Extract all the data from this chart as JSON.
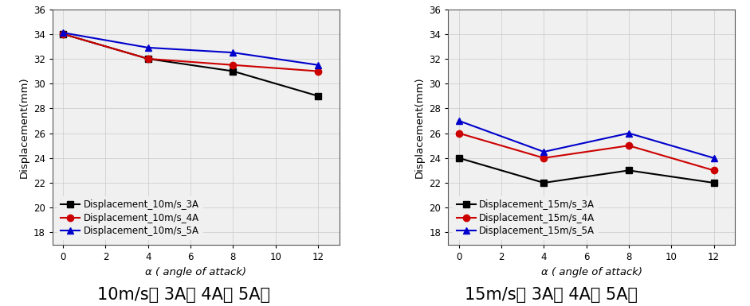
{
  "x": [
    0,
    4,
    8,
    12
  ],
  "plot1": {
    "series": [
      {
        "label": "Displacement_10m/s_3A",
        "color": "#000000",
        "marker": "s",
        "values": [
          34.0,
          32.0,
          31.0,
          29.0
        ]
      },
      {
        "label": "Displacement_10m/s_4A",
        "color": "#cc0000",
        "marker": "o",
        "values": [
          34.0,
          32.0,
          31.5,
          31.0
        ]
      },
      {
        "label": "Displacement_10m/s_5A",
        "color": "#0000cc",
        "marker": "^",
        "values": [
          34.1,
          32.9,
          32.5,
          31.5
        ]
      }
    ],
    "xlabel": "α ( angle of attack)",
    "ylabel": "Displacement(mm)",
    "xlim": [
      -0.5,
      13
    ],
    "ylim": [
      17,
      36
    ],
    "xticks": [
      0,
      2,
      4,
      6,
      8,
      10,
      12
    ],
    "yticks": [
      18,
      20,
      22,
      24,
      26,
      28,
      30,
      32,
      34,
      36
    ],
    "caption": "10m/s（ 3A， 4A， 5A）"
  },
  "plot2": {
    "series": [
      {
        "label": "Displacement_15m/s_3A",
        "color": "#000000",
        "marker": "s",
        "values": [
          24.0,
          22.0,
          23.0,
          22.0
        ]
      },
      {
        "label": "Displacement_15m/s_4A",
        "color": "#cc0000",
        "marker": "o",
        "values": [
          26.0,
          24.0,
          25.0,
          23.0
        ]
      },
      {
        "label": "Displacement_15m/s_5A",
        "color": "#0000cc",
        "marker": "^",
        "values": [
          27.0,
          24.5,
          26.0,
          24.0
        ]
      }
    ],
    "xlabel": "α ( angle of attack)",
    "ylabel": "Displacement(mm)",
    "xlim": [
      -0.5,
      13
    ],
    "ylim": [
      17,
      36
    ],
    "xticks": [
      0,
      2,
      4,
      6,
      8,
      10,
      12
    ],
    "yticks": [
      18,
      20,
      22,
      24,
      26,
      28,
      30,
      32,
      34,
      36
    ],
    "caption": "15m/s（ 3A， 4A， 5A）"
  },
  "line_width": 1.5,
  "marker_size": 6,
  "legend_fontsize": 8.5,
  "axis_fontsize": 9.5,
  "caption_fontsize": 15,
  "tick_fontsize": 8.5,
  "grid_color": "#c8c8c8",
  "grid_alpha": 0.8,
  "background_color": "#f0f0f0"
}
